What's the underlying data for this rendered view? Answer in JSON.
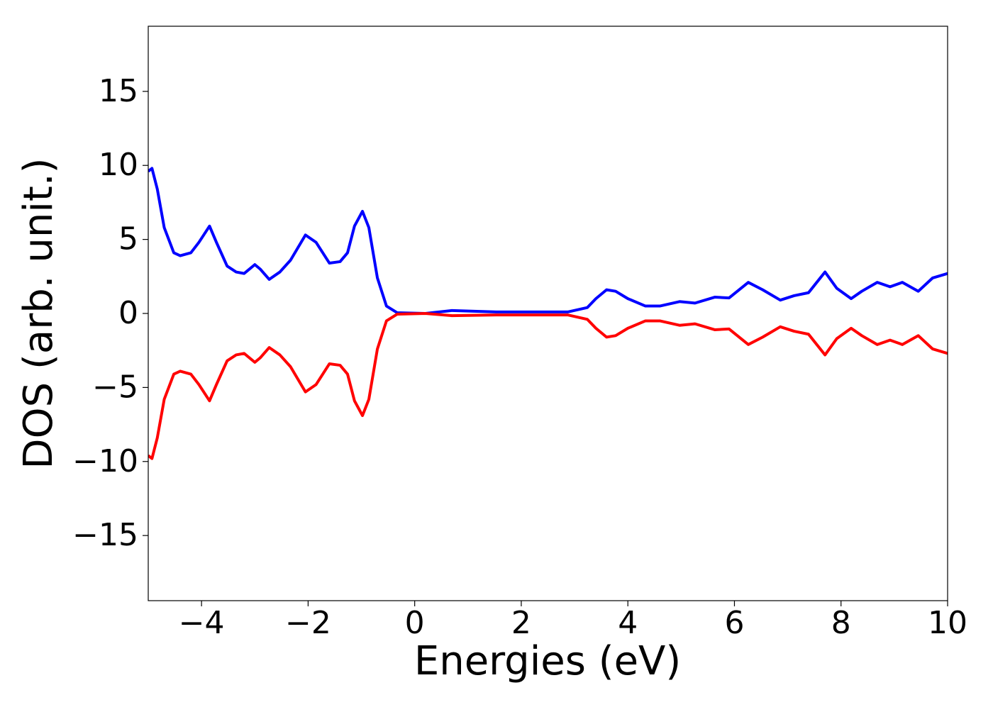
{
  "chart_data": {
    "type": "line",
    "xlabel": "Energies (eV)",
    "ylabel": "DOS (arb. unit.)",
    "x": [
      -5,
      -4.93,
      -4.83,
      -4.7,
      -4.52,
      -4.4,
      -4.2,
      -4.05,
      -3.85,
      -3.72,
      -3.52,
      -3.35,
      -3.2,
      -3.0,
      -2.9,
      -2.73,
      -2.53,
      -2.33,
      -2.05,
      -1.85,
      -1.6,
      -1.4,
      -1.26,
      -1.13,
      -0.98,
      -0.86,
      -0.7,
      -0.53,
      -0.33,
      0.2,
      0.7,
      1.53,
      2.87,
      3.24,
      3.4,
      3.6,
      3.77,
      4.0,
      4.33,
      4.6,
      4.97,
      5.26,
      5.63,
      5.9,
      6.26,
      6.53,
      6.86,
      7.12,
      7.39,
      7.7,
      7.92,
      8.19,
      8.39,
      8.68,
      8.92,
      9.15,
      9.45,
      9.72,
      10.0
    ],
    "series": [
      {
        "color": "#0000ff",
        "values": [
          9.6,
          9.8,
          8.4,
          5.8,
          4.1,
          3.9,
          4.1,
          4.8,
          5.9,
          4.8,
          3.2,
          2.8,
          2.7,
          3.3,
          3.0,
          2.3,
          2.8,
          3.6,
          5.3,
          4.8,
          3.4,
          3.5,
          4.1,
          5.9,
          6.9,
          5.8,
          2.4,
          0.5,
          0.05,
          0,
          0.2,
          0.1,
          0.1,
          0.4,
          1.0,
          1.6,
          1.5,
          1.0,
          0.5,
          0.5,
          0.8,
          0.7,
          1.1,
          1.05,
          2.1,
          1.6,
          0.9,
          1.2,
          1.4,
          2.8,
          1.7,
          1.0,
          1.5,
          2.1,
          1.8,
          2.1,
          1.5,
          2.4,
          2.7
        ]
      },
      {
        "color": "#ff0000",
        "values": [
          -9.6,
          -9.8,
          -8.4,
          -5.8,
          -4.1,
          -3.9,
          -4.1,
          -4.8,
          -5.9,
          -4.8,
          -3.2,
          -2.8,
          -2.7,
          -3.3,
          -3.0,
          -2.3,
          -2.8,
          -3.6,
          -5.3,
          -4.8,
          -3.4,
          -3.5,
          -4.1,
          -5.9,
          -6.9,
          -5.8,
          -2.4,
          -0.5,
          -0.05,
          0,
          -0.15,
          -0.1,
          -0.1,
          -0.4,
          -1.0,
          -1.6,
          -1.5,
          -1.0,
          -0.5,
          -0.5,
          -0.8,
          -0.7,
          -1.1,
          -1.05,
          -2.1,
          -1.6,
          -0.9,
          -1.2,
          -1.4,
          -2.8,
          -1.7,
          -1.0,
          -1.5,
          -2.1,
          -1.8,
          -2.1,
          -1.5,
          -2.4,
          -2.7
        ]
      }
    ],
    "xlim": [
      -5,
      10
    ],
    "xticks": [
      {
        "value": -4,
        "label": "−4"
      },
      {
        "value": -2,
        "label": "−2"
      },
      0,
      2,
      4,
      6,
      8,
      10
    ],
    "ylim": [
      -19.4,
      19.4
    ],
    "yticks": [
      {
        "value": -15,
        "label": "−15"
      },
      {
        "value": -10,
        "label": "−10"
      },
      {
        "value": -5,
        "label": "−5"
      },
      0,
      5,
      10,
      15
    ]
  }
}
